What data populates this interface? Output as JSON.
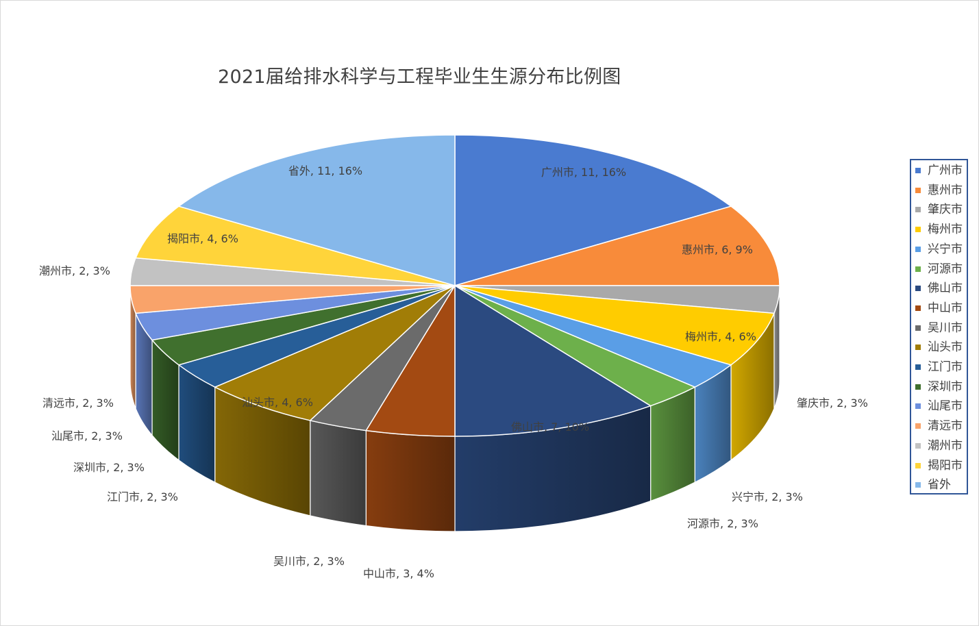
{
  "chart_data": {
    "type": "pie",
    "title": "2021届给排水科学与工程毕业生生源分布比例图",
    "categories": [
      "广州市",
      "惠州市",
      "肇庆市",
      "梅州市",
      "兴宁市",
      "河源市",
      "佛山市",
      "中山市",
      "吴川市",
      "汕头市",
      "江门市",
      "深圳市",
      "汕尾市",
      "清远市",
      "潮州市",
      "揭阳市",
      "省外"
    ],
    "values": [
      11,
      6,
      2,
      4,
      2,
      2,
      7,
      3,
      2,
      4,
      2,
      2,
      2,
      2,
      2,
      4,
      11
    ],
    "data_labels": [
      "广州市, 11, 16%",
      "惠州市, 6, 9%",
      "肇庆市, 2, 3%",
      "梅州市, 4, 6%",
      "兴宁市, 2, 3%",
      "河源市, 2, 3%",
      "佛山市, 7, 10%",
      "中山市, 3, 4%",
      "吴川市, 2, 3%",
      "汕头市, 4, 6%",
      "江门市, 2, 3%",
      "深圳市, 2, 3%",
      "汕尾市, 2, 3%",
      "清远市, 2, 3%",
      "潮州市, 2, 3%",
      "揭阳市, 4, 6%",
      "省外, 11, 16%"
    ],
    "colors": [
      "#4a7bd0",
      "#f88b3a",
      "#a9a9a9",
      "#ffcc00",
      "#5a9ee6",
      "#6db04b",
      "#2b4a80",
      "#a34a12",
      "#6b6b6b",
      "#a17d07",
      "#275e98",
      "#40702e",
      "#6d8fde",
      "#f9a36a",
      "#c2c2c2",
      "#ffd43a",
      "#86b8ea"
    ],
    "legend_position": "right"
  }
}
